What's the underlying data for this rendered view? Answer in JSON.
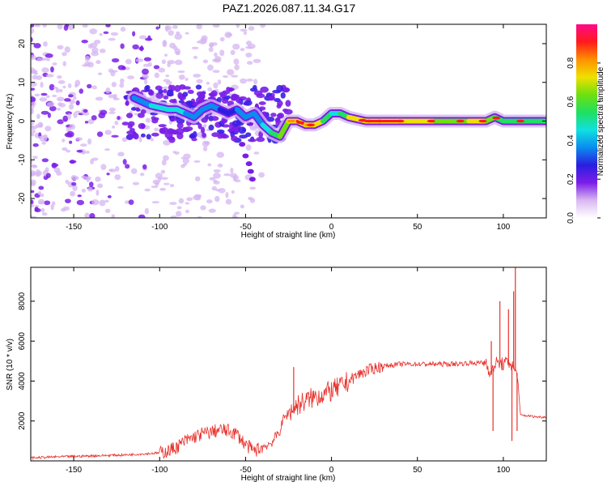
{
  "title": "PAZ1.2026.087.11.34.G17",
  "colors": {
    "snr_line": "#e8302a",
    "trace_core": "#ff1a1a",
    "trace_mid": "#22dd22",
    "trace_outer": "#18c8e8",
    "scatter_dark": "#7a1ee6",
    "scatter_light": "#d6b6f2"
  },
  "chart_data": [
    {
      "type": "heatmap",
      "name": "spectrogram",
      "xlabel": "Height of straight line (km)",
      "ylabel": "Frequency (Hz)",
      "xlim": [
        -175,
        125
      ],
      "ylim": [
        -25,
        25
      ],
      "xticks": [
        -150,
        -100,
        -50,
        0,
        50,
        100
      ],
      "yticks": [
        -20,
        -10,
        0,
        10,
        20
      ],
      "trace": {
        "x": [
          -115,
          -105,
          -95,
          -90,
          -85,
          -80,
          -75,
          -70,
          -65,
          -60,
          -55,
          -50,
          -45,
          -40,
          -35,
          -30,
          -25,
          -20,
          -15,
          -10,
          -5,
          0,
          5,
          10,
          20,
          30,
          40,
          50,
          60,
          70,
          80,
          90,
          95,
          100,
          105,
          110,
          115,
          125
        ],
        "y": [
          6,
          4,
          3,
          3,
          2,
          1,
          3,
          4,
          3,
          2,
          3,
          1,
          2,
          -1,
          -3,
          -4,
          0,
          0,
          -1,
          -1,
          0,
          2,
          2,
          1,
          0,
          0,
          0,
          0,
          0,
          0,
          0,
          0,
          1,
          0,
          0,
          0,
          0,
          0
        ],
        "amplitude": [
          0.35,
          0.4,
          0.45,
          0.5,
          0.4,
          0.35,
          0.3,
          0.35,
          0.3,
          0.3,
          0.3,
          0.35,
          0.35,
          0.45,
          0.5,
          0.55,
          0.75,
          0.85,
          0.9,
          0.8,
          0.6,
          0.45,
          0.5,
          0.6,
          0.85,
          0.95,
          0.8,
          0.7,
          0.7,
          0.65,
          0.7,
          0.75,
          0.6,
          0.55,
          0.5,
          0.5,
          0.6,
          0.5
        ]
      },
      "colorbar": {
        "label": "Normalized spectral amplitude",
        "range": [
          0,
          1
        ],
        "ticks": [
          "0.0",
          "0.2",
          "0.4",
          "0.6",
          "0.8"
        ],
        "tick_values": [
          0,
          0.2,
          0.4,
          0.6,
          0.8
        ],
        "stops": [
          "#ffffff",
          "#d9b8f2",
          "#7c1ee8",
          "#2a1ee0",
          "#0a8cf0",
          "#10e0e0",
          "#20e060",
          "#6ee010",
          "#f0e000",
          "#ff9000",
          "#ff1a1a",
          "#ff0a8a"
        ]
      }
    },
    {
      "type": "line",
      "name": "snr",
      "xlabel": "Height of straight line (km)",
      "ylabel": "SNR (10 * v/v)",
      "xlim": [
        -175,
        125
      ],
      "ylim": [
        0,
        9700
      ],
      "xticks": [
        -150,
        -100,
        -50,
        0,
        50,
        100
      ],
      "yticks": [
        2000,
        4000,
        6000,
        8000
      ],
      "series": [
        {
          "name": "SNR",
          "x": [
            -175,
            -160,
            -140,
            -120,
            -110,
            -100,
            -95,
            -90,
            -85,
            -80,
            -75,
            -70,
            -65,
            -60,
            -55,
            -50,
            -45,
            -40,
            -35,
            -30,
            -28,
            -25,
            -20,
            -15,
            -10,
            -5,
            0,
            5,
            10,
            15,
            20,
            25,
            30,
            35,
            40,
            50,
            60,
            70,
            80,
            85,
            90,
            93,
            95,
            100,
            104,
            106,
            108,
            110,
            115,
            120,
            125
          ],
          "y": [
            150,
            200,
            250,
            300,
            350,
            400,
            500,
            700,
            1000,
            1200,
            1350,
            1450,
            1550,
            1500,
            1350,
            800,
            500,
            700,
            900,
            1500,
            2100,
            2400,
            2800,
            3000,
            3200,
            3350,
            3500,
            3700,
            4000,
            4300,
            4500,
            4650,
            4750,
            4800,
            4850,
            4850,
            4850,
            4850,
            4900,
            4900,
            4950,
            4300,
            4900,
            4850,
            4950,
            4600,
            4400,
            2300,
            2250,
            2200,
            2200
          ],
          "spikes": [
            {
              "x": -22,
              "y": 4700
            },
            {
              "x": 93,
              "y": 6000
            },
            {
              "x": 94,
              "y": 1500
            },
            {
              "x": 98,
              "y": 8000
            },
            {
              "x": 103,
              "y": 7600
            },
            {
              "x": 105,
              "y": 1000
            },
            {
              "x": 106,
              "y": 8500
            },
            {
              "x": 107,
              "y": 9700
            },
            {
              "x": 108,
              "y": 1500
            }
          ]
        }
      ]
    }
  ]
}
